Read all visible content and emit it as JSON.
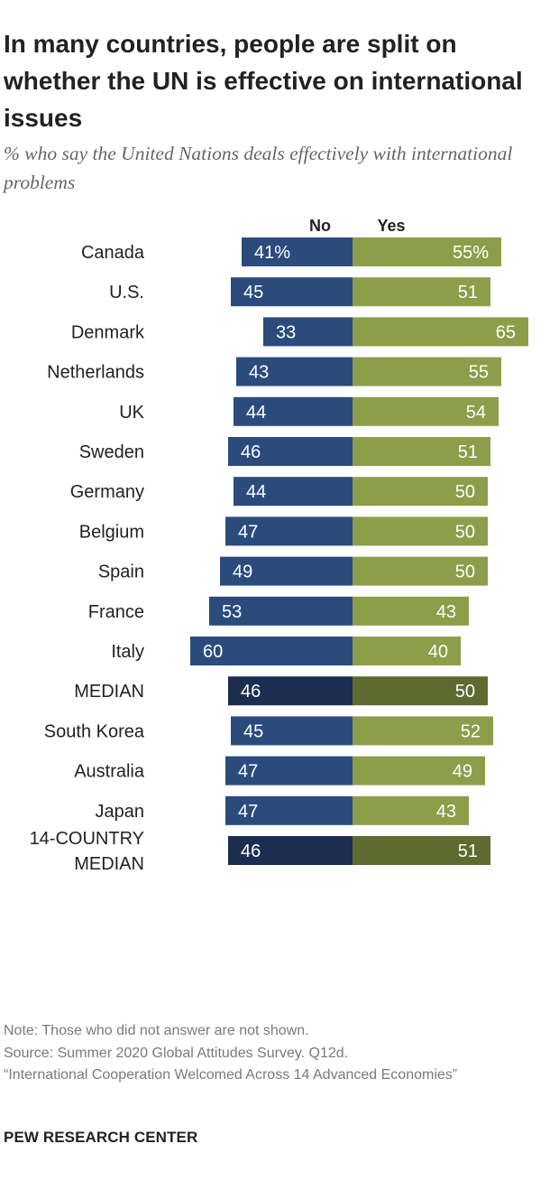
{
  "title": "In many countries, people are split on whether the UN is effective on international issues",
  "subtitle": "% who say the United Nations deals effectively with international problems",
  "notes": {
    "note": "Note: Those who did not answer are not shown.",
    "source": "Source: Summer 2020 Global Attitudes Survey. Q12d.",
    "report": "“International Cooperation Welcomed Across 14 Advanced Economies”"
  },
  "brand": "PEW RESEARCH CENTER",
  "colors": {
    "no": "#2b4b7d",
    "yes": "#8c9e4a",
    "no_median": "#1b2e4f",
    "yes_median": "#5e6a30"
  },
  "chart_data": {
    "type": "bar",
    "orientation": "horizontal-diverging",
    "legend": [
      "No",
      "Yes"
    ],
    "series": [
      {
        "name": "No",
        "values": [
          41,
          45,
          33,
          43,
          44,
          46,
          44,
          47,
          49,
          53,
          60,
          46,
          45,
          47,
          47,
          46
        ]
      },
      {
        "name": "Yes",
        "values": [
          55,
          51,
          65,
          55,
          54,
          51,
          50,
          50,
          50,
          43,
          40,
          50,
          52,
          49,
          43,
          51
        ]
      }
    ],
    "rows": [
      {
        "label": [
          "Canada"
        ],
        "no": 41,
        "yes": 55,
        "no_text": "41%",
        "yes_text": "55%",
        "median": false
      },
      {
        "label": [
          "U.S."
        ],
        "no": 45,
        "yes": 51,
        "no_text": "45",
        "yes_text": "51",
        "median": false
      },
      {
        "label": [
          "Denmark"
        ],
        "no": 33,
        "yes": 65,
        "no_text": "33",
        "yes_text": "65",
        "median": false
      },
      {
        "label": [
          "Netherlands"
        ],
        "no": 43,
        "yes": 55,
        "no_text": "43",
        "yes_text": "55",
        "median": false
      },
      {
        "label": [
          "UK"
        ],
        "no": 44,
        "yes": 54,
        "no_text": "44",
        "yes_text": "54",
        "median": false
      },
      {
        "label": [
          "Sweden"
        ],
        "no": 46,
        "yes": 51,
        "no_text": "46",
        "yes_text": "51",
        "median": false
      },
      {
        "label": [
          "Germany"
        ],
        "no": 44,
        "yes": 50,
        "no_text": "44",
        "yes_text": "50",
        "median": false
      },
      {
        "label": [
          "Belgium"
        ],
        "no": 47,
        "yes": 50,
        "no_text": "47",
        "yes_text": "50",
        "median": false
      },
      {
        "label": [
          "Spain"
        ],
        "no": 49,
        "yes": 50,
        "no_text": "49",
        "yes_text": "50",
        "median": false
      },
      {
        "label": [
          "France"
        ],
        "no": 53,
        "yes": 43,
        "no_text": "53",
        "yes_text": "43",
        "median": false
      },
      {
        "label": [
          "Italy"
        ],
        "no": 60,
        "yes": 40,
        "no_text": "60",
        "yes_text": "40",
        "median": false
      },
      {
        "label": [
          "MEDIAN"
        ],
        "no": 46,
        "yes": 50,
        "no_text": "46",
        "yes_text": "50",
        "median": true
      },
      {
        "label": [
          "South Korea"
        ],
        "no": 45,
        "yes": 52,
        "no_text": "45",
        "yes_text": "52",
        "median": false
      },
      {
        "label": [
          "Australia"
        ],
        "no": 47,
        "yes": 49,
        "no_text": "47",
        "yes_text": "49",
        "median": false
      },
      {
        "label": [
          "Japan"
        ],
        "no": 47,
        "yes": 43,
        "no_text": "47",
        "yes_text": "43",
        "median": false
      },
      {
        "label": [
          "14-COUNTRY",
          "MEDIAN"
        ],
        "no": 46,
        "yes": 51,
        "no_text": "46",
        "yes_text": "51",
        "median": true
      }
    ],
    "groups": [
      [
        0,
        1
      ],
      [
        2,
        3,
        4,
        5,
        6,
        7,
        8,
        9,
        10,
        11
      ],
      [
        12,
        13,
        14
      ],
      [
        15
      ]
    ]
  }
}
